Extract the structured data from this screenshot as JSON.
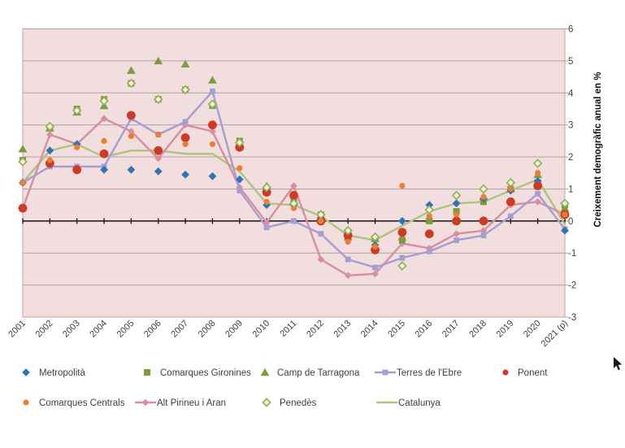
{
  "chart_data": {
    "type": "line",
    "title": "",
    "xlabel": "",
    "ylabel": "Creixement demogràfic anual en %",
    "ylim": [
      -3,
      6
    ],
    "ytick_labels": [
      "6",
      "5",
      "4",
      "3",
      "2",
      "1",
      "0",
      "-1",
      "-2",
      "-3"
    ],
    "grid": true,
    "legend_position": "bottom",
    "plot_background": "#f2dede",
    "gridline_color": "#a6a6a6",
    "border_color": "#cf9f9f",
    "axis_color": "#000000",
    "label_color": "#3f3f3f",
    "categories": [
      "2001",
      "2002",
      "2003",
      "2004",
      "2005",
      "2006",
      "2007",
      "2008",
      "2009",
      "2010",
      "2011",
      "2012",
      "2013",
      "2014",
      "2015",
      "2016",
      "2017",
      "2018",
      "2019",
      "2020",
      "2021 (p)"
    ],
    "series": [
      {
        "name": "Metropolità",
        "color": "#2e75b6",
        "marker": "diamond",
        "line": false,
        "values": [
          1.2,
          2.2,
          2.4,
          1.6,
          1.6,
          1.55,
          1.45,
          1.4,
          1.3,
          0.5,
          0.5,
          0.1,
          -0.5,
          -0.75,
          0.0,
          0.5,
          0.55,
          0.7,
          0.95,
          1.25,
          -0.3
        ]
      },
      {
        "name": "Comarques Gironines",
        "color": "#7e9b3e",
        "marker": "square",
        "line": false,
        "values": [
          1.9,
          2.9,
          3.5,
          3.8,
          4.3,
          3.8,
          4.1,
          3.6,
          2.5,
          1.0,
          0.6,
          0.2,
          -0.45,
          -0.55,
          -0.6,
          0.0,
          0.3,
          0.6,
          1.0,
          1.2,
          0.5
        ]
      },
      {
        "name": "Camp de Tarragona",
        "color": "#7e9b3e",
        "marker": "triangle",
        "line": false,
        "values": [
          2.25,
          2.9,
          3.4,
          3.6,
          4.7,
          5.0,
          4.9,
          4.4,
          2.4,
          1.1,
          0.6,
          0.15,
          -0.5,
          -0.55,
          -0.5,
          0.05,
          0.1,
          0.75,
          1.0,
          1.45,
          0.4
        ]
      },
      {
        "name": "Terres de l'Ebre",
        "color": "#a49ed1",
        "marker": "square-small",
        "line": true,
        "values": [
          1.2,
          1.7,
          1.7,
          1.7,
          3.2,
          2.7,
          3.1,
          4.05,
          0.95,
          -0.2,
          0.0,
          -0.4,
          -1.2,
          -1.45,
          -1.15,
          -0.95,
          -0.6,
          -0.45,
          0.15,
          0.85,
          -0.25
        ]
      },
      {
        "name": "Ponent",
        "color": "#cf3a23",
        "marker": "circle-large",
        "line": false,
        "values": [
          0.4,
          1.8,
          1.6,
          2.1,
          3.3,
          2.2,
          2.6,
          3.0,
          2.3,
          0.9,
          0.8,
          0.0,
          -0.45,
          -0.9,
          -0.35,
          -0.4,
          0.0,
          0.0,
          0.6,
          1.1,
          0.2
        ]
      },
      {
        "name": "Comarques Centrals",
        "color": "#ed7d31",
        "marker": "circle-small",
        "line": false,
        "values": [
          1.2,
          1.9,
          2.3,
          2.5,
          2.65,
          2.7,
          2.4,
          2.4,
          1.65,
          0.6,
          0.4,
          0.0,
          -0.65,
          -0.8,
          1.1,
          0.15,
          0.2,
          0.75,
          1.0,
          1.5,
          0.2
        ]
      },
      {
        "name": "Alt Pirineu i Aran",
        "color": "#d78fa0",
        "marker": "diamond-small",
        "line": true,
        "values": [
          0.4,
          2.7,
          2.4,
          3.2,
          2.8,
          1.95,
          3.0,
          2.8,
          1.05,
          -0.05,
          1.1,
          -1.2,
          -1.7,
          -1.65,
          -0.7,
          -0.85,
          -0.4,
          -0.3,
          0.5,
          0.6,
          0.2
        ]
      },
      {
        "name": "Penedès",
        "color": "#94b353",
        "marker": "diamond-open",
        "line": false,
        "values": [
          1.85,
          2.95,
          3.45,
          3.75,
          4.3,
          3.8,
          4.1,
          3.65,
          2.45,
          1.05,
          0.55,
          0.2,
          -0.3,
          -0.5,
          -1.4,
          0.35,
          0.8,
          1.0,
          1.2,
          1.8,
          0.55
        ]
      },
      {
        "name": "Catalunya",
        "color": "#abc47e",
        "marker": null,
        "line": true,
        "values": [
          1.2,
          2.2,
          2.4,
          2.0,
          2.2,
          2.2,
          2.1,
          2.1,
          1.55,
          0.55,
          0.5,
          0.15,
          -0.45,
          -0.6,
          -0.15,
          0.3,
          0.55,
          0.6,
          0.95,
          1.3,
          -0.1
        ]
      }
    ]
  }
}
